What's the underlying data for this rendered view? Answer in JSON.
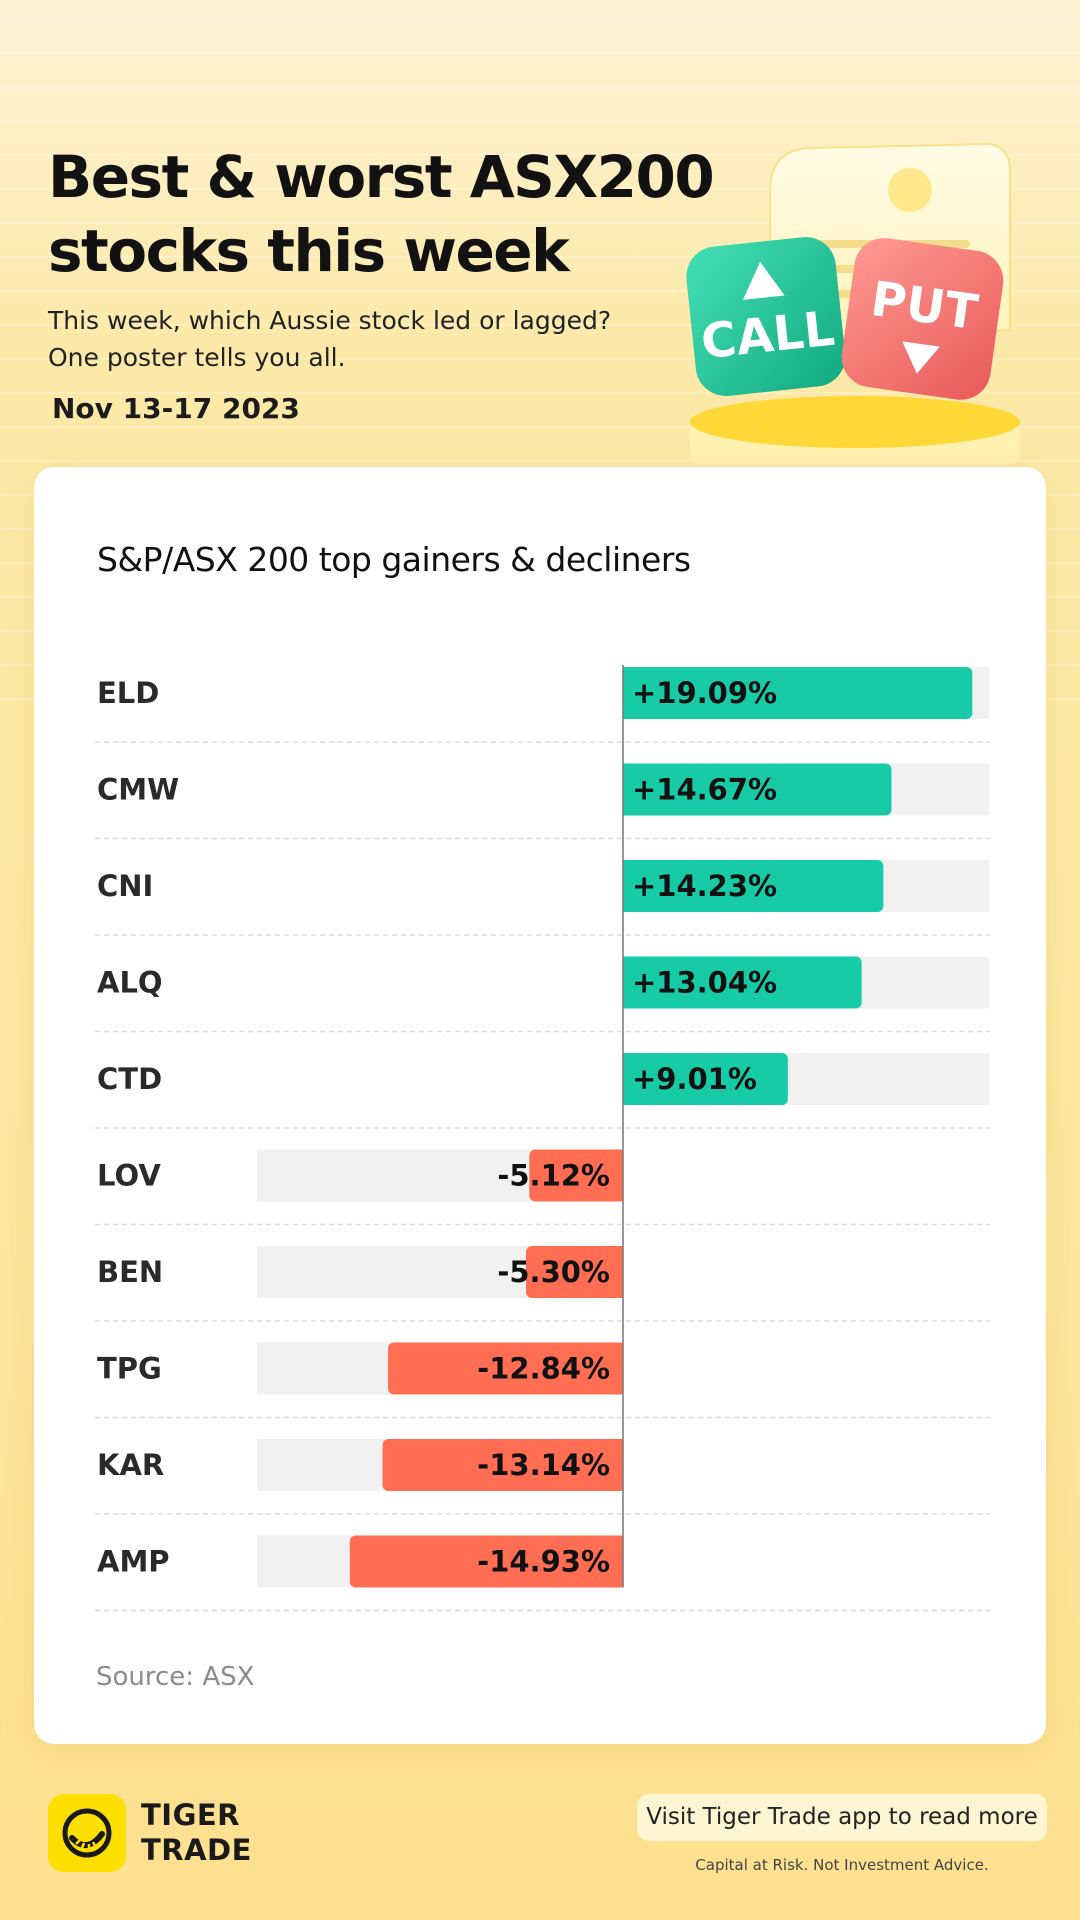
{
  "header": {
    "title_line1": "Best & worst ASX200",
    "title_line2": "stocks this week",
    "subtitle_line1": "This week, which Aussie stock led or lagged?",
    "subtitle_line2": "One poster tells you all.",
    "date": "Nov 13-17 2023"
  },
  "illustration": {
    "call_label": "CALL",
    "put_label": "PUT",
    "call_color": "#1fc59b",
    "put_color": "#f06c6c"
  },
  "colors": {
    "gainer": "#17cba7",
    "decliner": "#ff6e52",
    "track": "#f2f1f1"
  },
  "chart_data": {
    "type": "bar",
    "title": "S&P/ASX 200 top gainers & decliners",
    "categories": [
      "ELD",
      "CMW",
      "CNI",
      "ALQ",
      "CTD",
      "LOV",
      "BEN",
      "TPG",
      "KAR",
      "AMP"
    ],
    "values": [
      19.09,
      14.67,
      14.23,
      13.04,
      9.01,
      -5.12,
      -5.3,
      -12.84,
      -13.14,
      -14.93
    ],
    "value_labels": [
      "+19.09%",
      "+14.67%",
      "+14.23%",
      "+13.04%",
      "+9.01%",
      "-5.12%",
      "-5.30%",
      "-12.84%",
      "-13.14%",
      "-14.93%"
    ],
    "xlim": [
      -20,
      20
    ],
    "orientation": "horizontal"
  },
  "source": "Source: ASX",
  "footer": {
    "brand_line1": "TIGER",
    "brand_line2": "TRADE",
    "cta": "Visit Tiger Trade app to read more",
    "disclaimer": "Capital at Risk. Not Investment Advice."
  }
}
